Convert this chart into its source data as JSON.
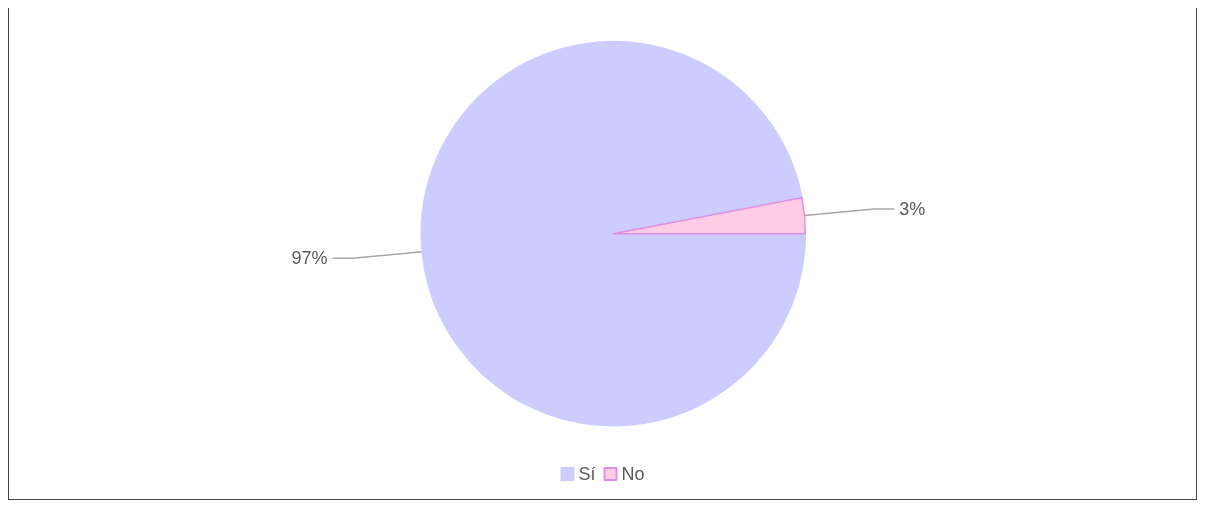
{
  "chart_data": {
    "type": "pie",
    "categories": [
      "Sí",
      "No"
    ],
    "values": [
      97,
      3
    ],
    "value_labels": [
      "97%",
      "3%"
    ],
    "colors": [
      "#ccccff",
      "#ffcce6"
    ],
    "legend": "bottom"
  }
}
